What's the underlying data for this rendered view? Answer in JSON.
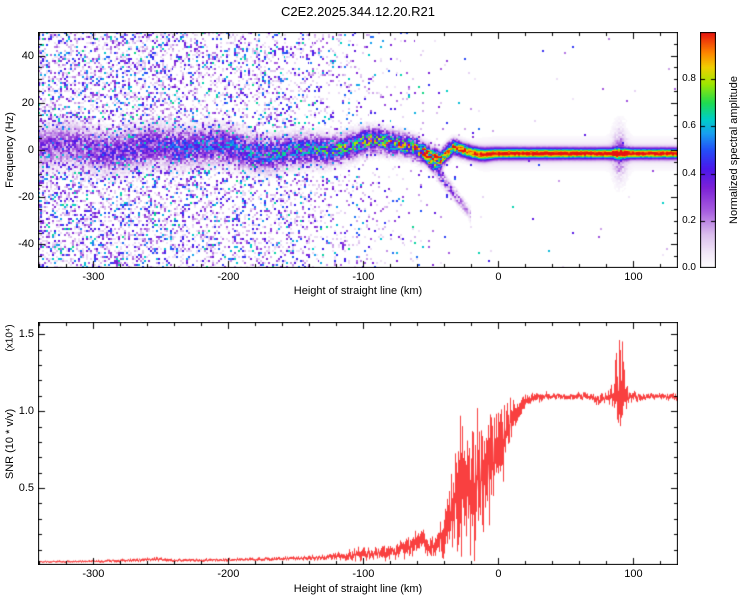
{
  "title": "C2E2.2025.344.12.20.R21",
  "chart_data": [
    {
      "type": "heatmap",
      "title": "",
      "xlabel": "Height of straight line (km)",
      "ylabel": "Frequency (Hz)",
      "xlim": [
        -341,
        133
      ],
      "ylim": [
        -50,
        50
      ],
      "xticks": [
        -300,
        -200,
        -100,
        0,
        100
      ],
      "yticks": [
        -40,
        -20,
        0,
        20,
        40
      ],
      "x_minor_step": 20,
      "y_minor_step": 5,
      "grid": false,
      "colorbar": {
        "label": "Normalized spectral amplitude",
        "ticks": [
          "0.0",
          "0.2",
          "0.4",
          "0.6",
          "0.8"
        ],
        "tick_values": [
          0,
          0.2,
          0.4,
          0.6,
          0.8
        ],
        "lim": [
          0,
          1
        ]
      },
      "colormap_stops": [
        [
          0.0,
          "#ffffff"
        ],
        [
          0.06,
          "#f3eaf9"
        ],
        [
          0.14,
          "#dcc0ee"
        ],
        [
          0.24,
          "#a95fe0"
        ],
        [
          0.34,
          "#7d22d8"
        ],
        [
          0.42,
          "#4b18ec"
        ],
        [
          0.5,
          "#2450f8"
        ],
        [
          0.57,
          "#18a0f0"
        ],
        [
          0.63,
          "#00cfc8"
        ],
        [
          0.7,
          "#20dc50"
        ],
        [
          0.78,
          "#a0e800"
        ],
        [
          0.85,
          "#f0d000"
        ],
        [
          0.91,
          "#ff8800"
        ],
        [
          1.0,
          "#e81010"
        ]
      ],
      "center_trace": {
        "points": [
          [
            -341,
            0
          ],
          [
            -300,
            0.5
          ],
          [
            -250,
            1
          ],
          [
            -200,
            0
          ],
          [
            -160,
            1.5
          ],
          [
            -130,
            1
          ],
          [
            -100,
            2
          ],
          [
            -80,
            1
          ],
          [
            -65,
            2
          ],
          [
            -55,
            0
          ],
          [
            -48,
            -2
          ],
          [
            -43,
            -4
          ],
          [
            -38,
            -1
          ],
          [
            -33,
            1
          ],
          [
            -28,
            0
          ],
          [
            -20,
            -1
          ],
          [
            -10,
            -1.5
          ],
          [
            0,
            -1.5
          ],
          [
            133,
            -1.5
          ]
        ],
        "amplitude_points": [
          [
            -341,
            0.3
          ],
          [
            -280,
            0.38
          ],
          [
            -220,
            0.46
          ],
          [
            -170,
            0.56
          ],
          [
            -130,
            0.64
          ],
          [
            -100,
            0.72
          ],
          [
            -80,
            0.8
          ],
          [
            -60,
            0.88
          ],
          [
            -45,
            0.95
          ],
          [
            -30,
            1.0
          ],
          [
            133,
            1.0
          ]
        ],
        "width_points": [
          [
            -341,
            5.5
          ],
          [
            -250,
            5.0
          ],
          [
            -180,
            4.2
          ],
          [
            -130,
            3.6
          ],
          [
            -90,
            3.0
          ],
          [
            -60,
            2.6
          ],
          [
            -40,
            2.2
          ],
          [
            -20,
            1.8
          ],
          [
            0,
            1.5
          ],
          [
            133,
            1.4
          ]
        ]
      },
      "noise_density_points": [
        [
          -341,
          0.42
        ],
        [
          -300,
          0.4
        ],
        [
          -260,
          0.38
        ],
        [
          -220,
          0.34
        ],
        [
          -180,
          0.3
        ],
        [
          -150,
          0.26
        ],
        [
          -130,
          0.2
        ],
        [
          -110,
          0.14
        ],
        [
          -95,
          0.1
        ],
        [
          -80,
          0.07
        ],
        [
          -65,
          0.05
        ],
        [
          -50,
          0.03
        ],
        [
          -35,
          0.016
        ],
        [
          -15,
          0.008
        ],
        [
          0,
          0.005
        ],
        [
          133,
          0.004
        ]
      ],
      "tail": {
        "from": [
          -55,
          -2
        ],
        "to": [
          -20,
          -28
        ],
        "width_hz": 1.8,
        "amp_start": 0.55,
        "amp_end": 0.15
      },
      "burst_blob": {
        "x": 90,
        "x_sigma": 3.5,
        "f_sigma": 7,
        "amp": 0.22
      },
      "haze": {
        "amp": 0.07,
        "f_sigma": 4.2,
        "fade_start": -30,
        "fade_end": -8
      }
    },
    {
      "type": "line",
      "title": "",
      "xlabel": "Height of straight line (km)",
      "ylabel": "SNR (10 * v/v)",
      "scale_note": "(x10⁴)",
      "xlim": [
        -341,
        133
      ],
      "ylim": [
        0,
        1.58
      ],
      "xticks": [
        -300,
        -200,
        -100,
        0,
        100
      ],
      "yticks": [
        "0.5",
        "1.0",
        "1.5"
      ],
      "ytick_values": [
        0.5,
        1.0,
        1.5
      ],
      "x_minor_step": 20,
      "y_minor_step": 0.1,
      "grid": false,
      "color": "#f94040",
      "envelope_points": [
        [
          -341,
          0.02,
          0.006
        ],
        [
          -300,
          0.024,
          0.008
        ],
        [
          -270,
          0.03,
          0.01
        ],
        [
          -255,
          0.038,
          0.012
        ],
        [
          -240,
          0.03,
          0.009
        ],
        [
          -210,
          0.032,
          0.01
        ],
        [
          -180,
          0.036,
          0.01
        ],
        [
          -150,
          0.044,
          0.013
        ],
        [
          -130,
          0.05,
          0.016
        ],
        [
          -118,
          0.058,
          0.022
        ],
        [
          -108,
          0.068,
          0.032
        ],
        [
          -100,
          0.078,
          0.04
        ],
        [
          -92,
          0.072,
          0.028
        ],
        [
          -85,
          0.088,
          0.048
        ],
        [
          -78,
          0.082,
          0.038
        ],
        [
          -70,
          0.105,
          0.055
        ],
        [
          -64,
          0.135,
          0.07
        ],
        [
          -58,
          0.155,
          0.08
        ],
        [
          -53,
          0.135,
          0.06
        ],
        [
          -48,
          0.12,
          0.055
        ],
        [
          -44,
          0.155,
          0.085
        ],
        [
          -40,
          0.21,
          0.13
        ],
        [
          -36,
          0.29,
          0.19
        ],
        [
          -32,
          0.38,
          0.28
        ],
        [
          -29,
          0.52,
          0.4
        ],
        [
          -27,
          0.65,
          0.55
        ],
        [
          -25,
          0.48,
          0.33
        ],
        [
          -22,
          0.42,
          0.3
        ],
        [
          -18,
          0.5,
          0.34
        ],
        [
          -14,
          0.56,
          0.34
        ],
        [
          -10,
          0.61,
          0.31
        ],
        [
          -6,
          0.66,
          0.3
        ],
        [
          -2,
          0.71,
          0.27
        ],
        [
          2,
          0.77,
          0.23
        ],
        [
          6,
          0.88,
          0.16
        ],
        [
          10,
          0.96,
          0.11
        ],
        [
          14,
          1.01,
          0.07
        ],
        [
          18,
          1.045,
          0.05
        ],
        [
          23,
          1.075,
          0.035
        ],
        [
          28,
          1.09,
          0.028
        ],
        [
          38,
          1.1,
          0.022
        ],
        [
          48,
          1.096,
          0.02
        ],
        [
          58,
          1.1,
          0.02
        ],
        [
          68,
          1.088,
          0.024
        ],
        [
          74,
          1.072,
          0.03
        ],
        [
          80,
          1.09,
          0.03
        ],
        [
          85,
          1.108,
          0.06
        ],
        [
          88,
          1.15,
          0.26
        ],
        [
          90,
          1.18,
          0.34
        ],
        [
          92,
          1.12,
          0.29
        ],
        [
          94,
          1.1,
          0.11
        ],
        [
          97,
          1.092,
          0.03
        ],
        [
          107,
          1.096,
          0.022
        ],
        [
          118,
          1.1,
          0.02
        ],
        [
          133,
          1.092,
          0.02
        ]
      ]
    }
  ]
}
